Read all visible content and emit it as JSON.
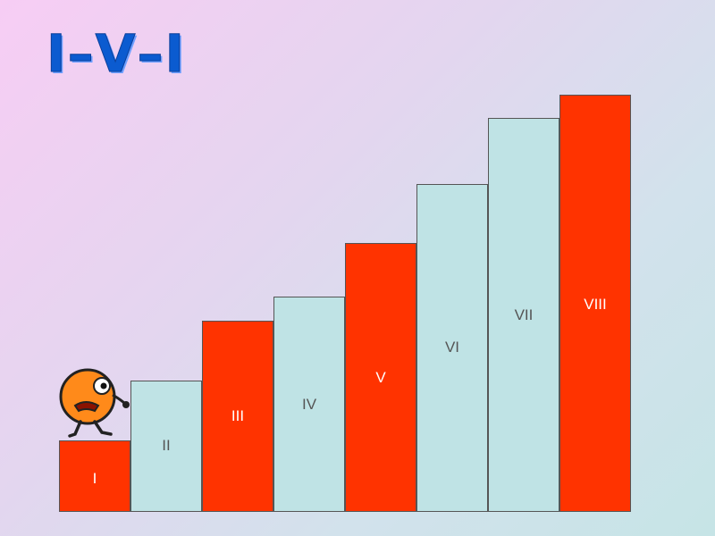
{
  "title": "I–V–I",
  "stairs": [
    {
      "label": "I",
      "color": "#ff3300",
      "label_color": "#ffffff"
    },
    {
      "label": "II",
      "color": "#bfe3e5",
      "label_color": "#555555"
    },
    {
      "label": "III",
      "color": "#ff3300",
      "label_color": "#ffffff"
    },
    {
      "label": "IV",
      "color": "#bfe3e5",
      "label_color": "#555555"
    },
    {
      "label": "V",
      "color": "#ff3300",
      "label_color": "#ffffff"
    },
    {
      "label": "VI",
      "color": "#bfe3e5",
      "label_color": "#555555"
    },
    {
      "label": "VII",
      "color": "#bfe3e5",
      "label_color": "#555555"
    },
    {
      "label": "VIII",
      "color": "#ff3300",
      "label_color": "#ffffff"
    }
  ],
  "mascot": {
    "icon": "walking-cartoon-character-icon",
    "body_color": "#ff8a1a"
  }
}
